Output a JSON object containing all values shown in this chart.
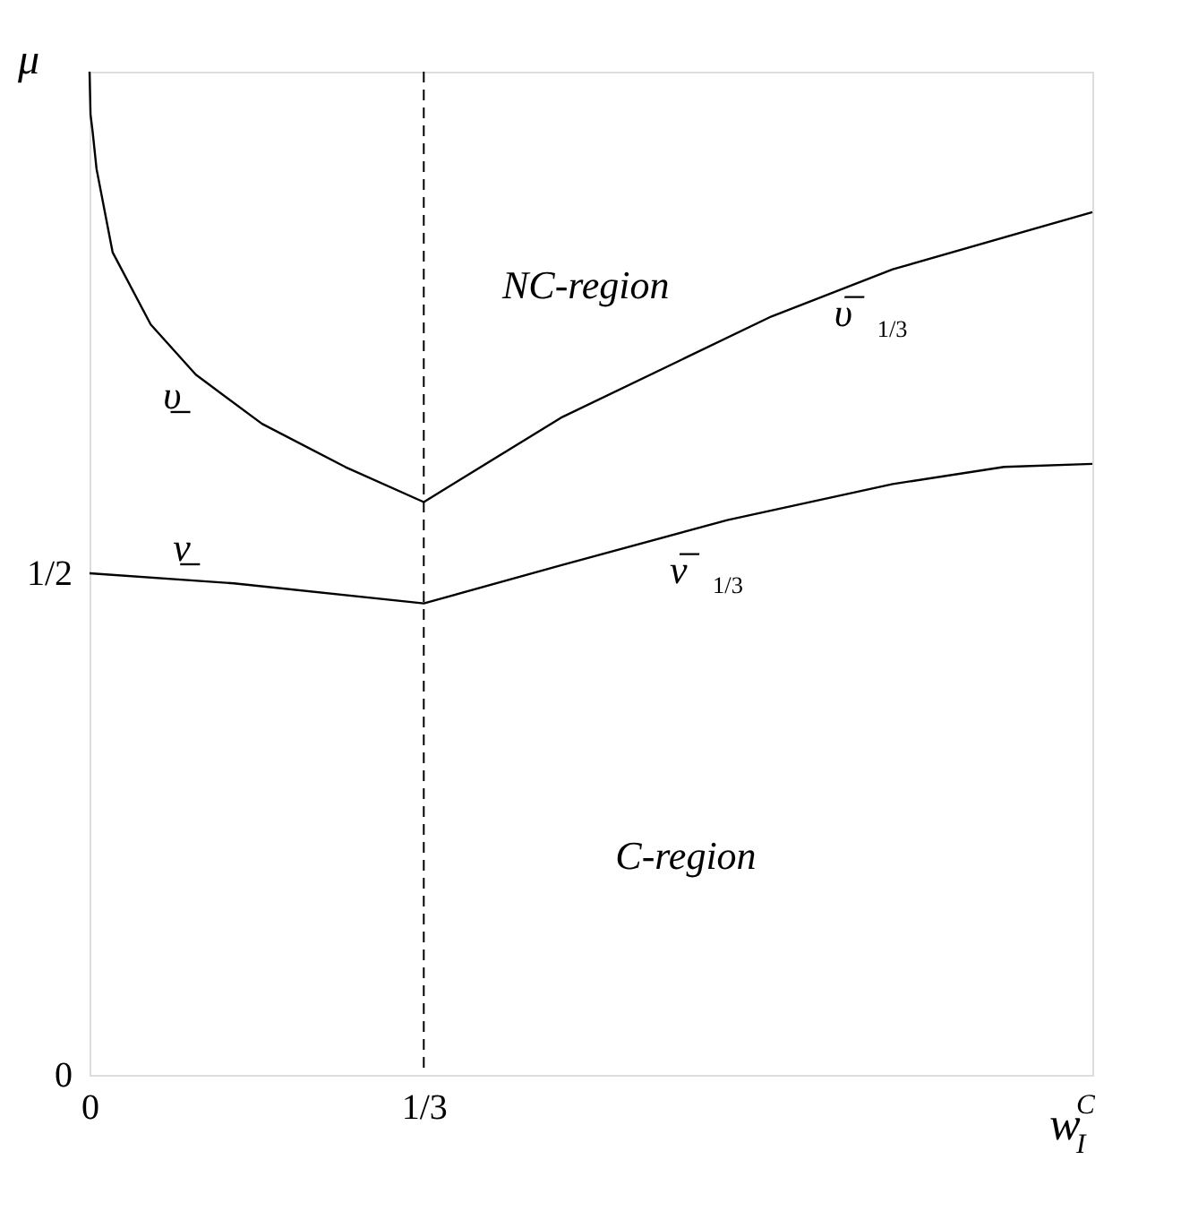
{
  "chart_data": {
    "type": "line",
    "xlabel": "w$^{C}$$_{I}$",
    "ylabel": "μ",
    "xlim": [
      0,
      1
    ],
    "ylim": [
      0,
      1
    ],
    "xticks": [
      0,
      {
        "value": 0.3333,
        "label": "1/3"
      }
    ],
    "yticks": [
      0,
      {
        "value": 0.5,
        "label": "1/2"
      }
    ],
    "series": [
      {
        "color": "#000000",
        "x": [
          0,
          0.001,
          0.003,
          0.007,
          0.023,
          0.061,
          0.106,
          0.172,
          0.255,
          0.3333,
          0.47,
          0.68,
          0.801,
          1.0
        ],
        "values": [
          1.0,
          0.957,
          0.941,
          0.903,
          0.82,
          0.748,
          0.698,
          0.649,
          0.606,
          0.571,
          0.655,
          0.756,
          0.803,
          0.86
        ]
      },
      {
        "color": "#000000",
        "x": [
          0,
          0.144,
          0.3333,
          0.47,
          0.636,
          0.801,
          0.912,
          1.0
        ],
        "values": [
          0.5,
          0.49,
          0.47,
          0.508,
          0.553,
          0.589,
          0.606,
          0.609
        ]
      }
    ],
    "ref_lines": [
      {
        "axis": "x",
        "value": 0.3333,
        "color": "#000000",
        "line_style": "dashed"
      }
    ],
    "annotations": [
      "NC-region",
      "C-region",
      "υ̲",
      "ν̲",
      "υ̅$_{1/3}$",
      "ν̅$_{1/3}$"
    ],
    "line_style": "solid",
    "grid": false
  }
}
